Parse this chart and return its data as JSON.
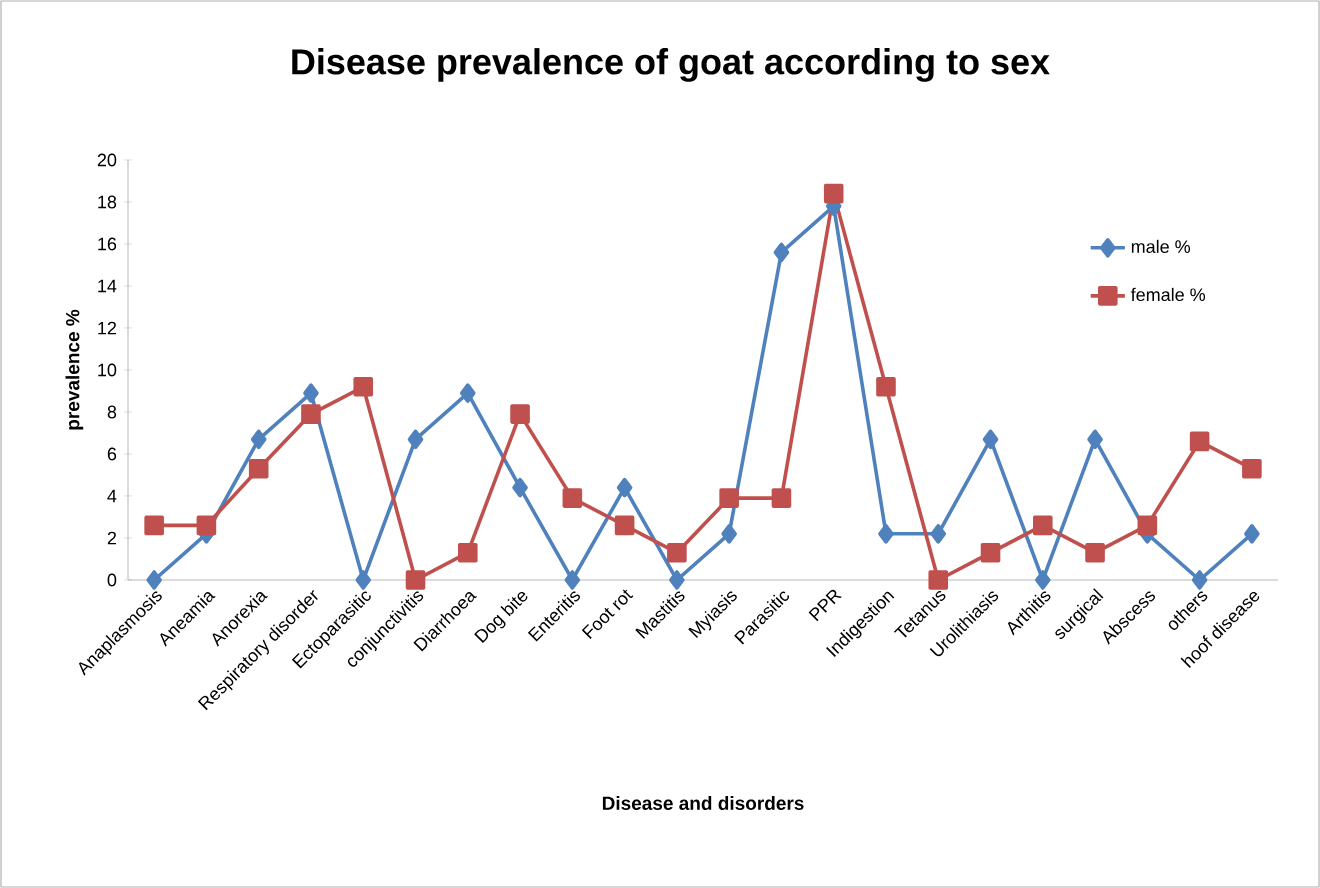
{
  "chart_data": {
    "type": "line",
    "title": "Disease prevalence of goat according to sex",
    "xlabel": "Disease and disorders",
    "ylabel": "prevalence %",
    "categories": [
      "Anaplasmosis",
      "Aneamia",
      "Anorexia",
      "Respiratory disorder",
      "Ectoparasitic",
      "conjunctivitis",
      "Diarrhoea",
      "Dog bite",
      "Enteritis",
      "Foot rot",
      "Mastitis",
      "Myiasis",
      "Parasitic",
      "PPR",
      "Indigestion",
      "Tetanus",
      "Urolithiasis",
      "Arthitis",
      "surgical",
      "Abscess",
      "others",
      "hoof disease"
    ],
    "series": [
      {
        "name": "male %",
        "color": "#4f81bd",
        "marker": "diamond",
        "values": [
          0,
          2.2,
          6.7,
          8.9,
          0,
          6.7,
          8.9,
          4.4,
          0,
          4.4,
          0,
          2.2,
          15.6,
          17.8,
          2.2,
          2.2,
          6.7,
          0,
          6.7,
          2.2,
          0,
          2.2
        ]
      },
      {
        "name": "female %",
        "color": "#c0504d",
        "marker": "square",
        "values": [
          2.6,
          2.6,
          5.3,
          7.9,
          9.2,
          0,
          1.3,
          7.9,
          3.9,
          2.6,
          1.3,
          3.9,
          3.9,
          18.4,
          9.2,
          0,
          1.3,
          2.6,
          1.3,
          2.6,
          6.6,
          5.3
        ]
      }
    ],
    "ylim": [
      0,
      20
    ],
    "yticks": [
      0,
      2,
      4,
      6,
      8,
      10,
      12,
      14,
      16,
      18,
      20
    ],
    "grid": false,
    "legend": "top right",
    "line_style": "solid"
  }
}
